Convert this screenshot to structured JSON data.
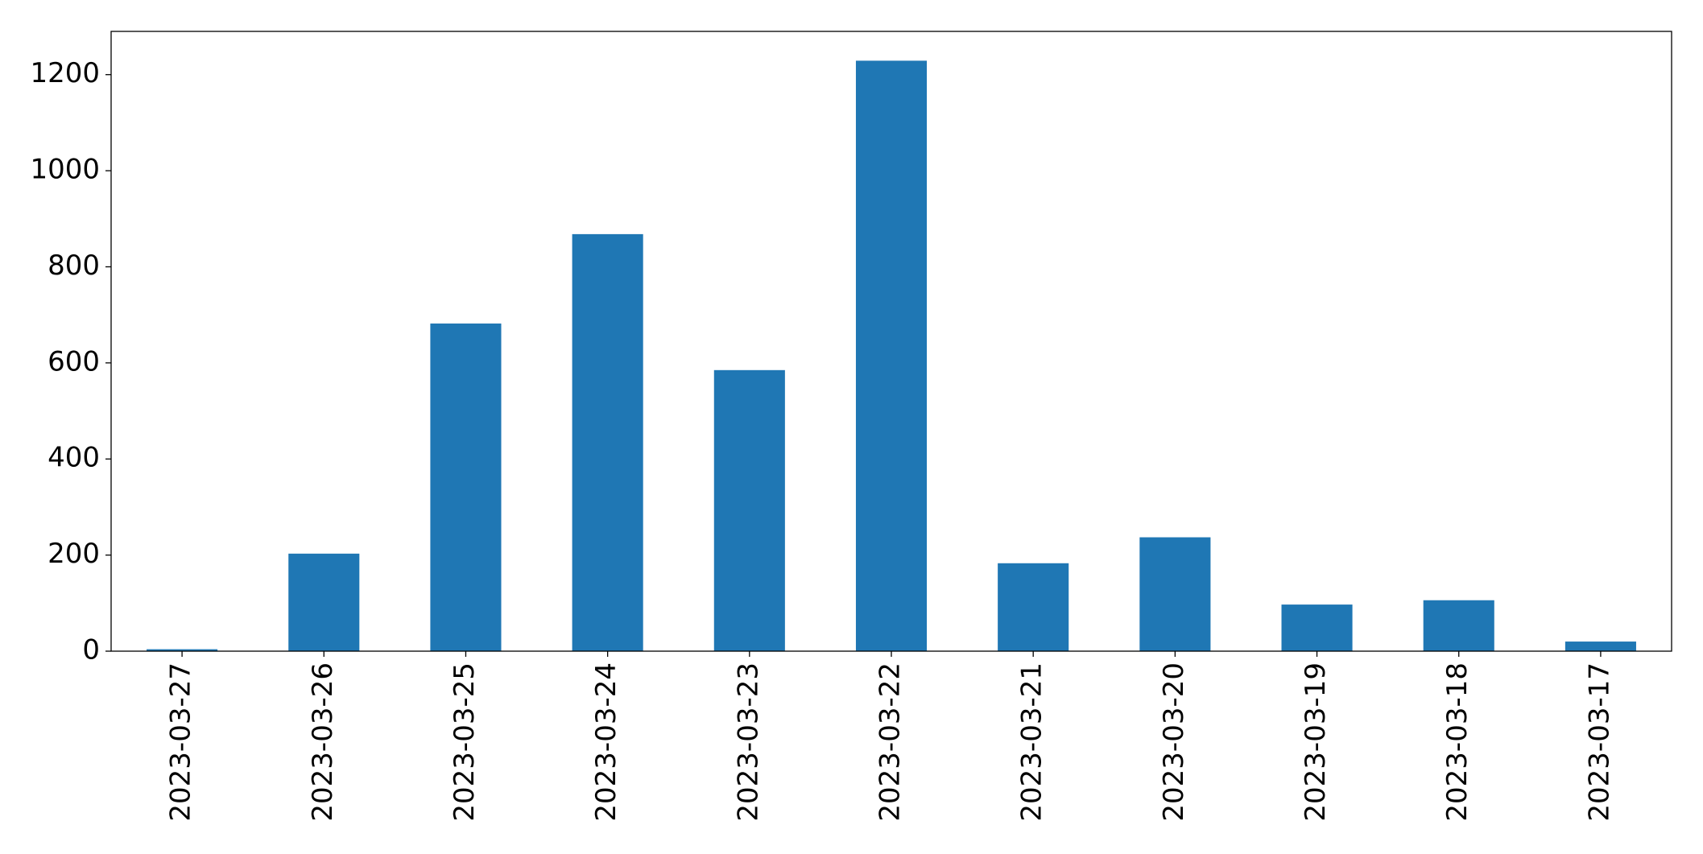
{
  "chart_data": {
    "type": "bar",
    "categories": [
      "2023-03-27",
      "2023-03-26",
      "2023-03-25",
      "2023-03-24",
      "2023-03-23",
      "2023-03-22",
      "2023-03-21",
      "2023-03-20",
      "2023-03-19",
      "2023-03-18",
      "2023-03-17"
    ],
    "values": [
      4,
      203,
      682,
      868,
      585,
      1229,
      183,
      237,
      97,
      106,
      20
    ],
    "color": "#1f77b4",
    "ylim": [
      0,
      1290
    ],
    "yticks": [
      0,
      200,
      400,
      600,
      800,
      1000,
      1200
    ],
    "grid": false
  }
}
